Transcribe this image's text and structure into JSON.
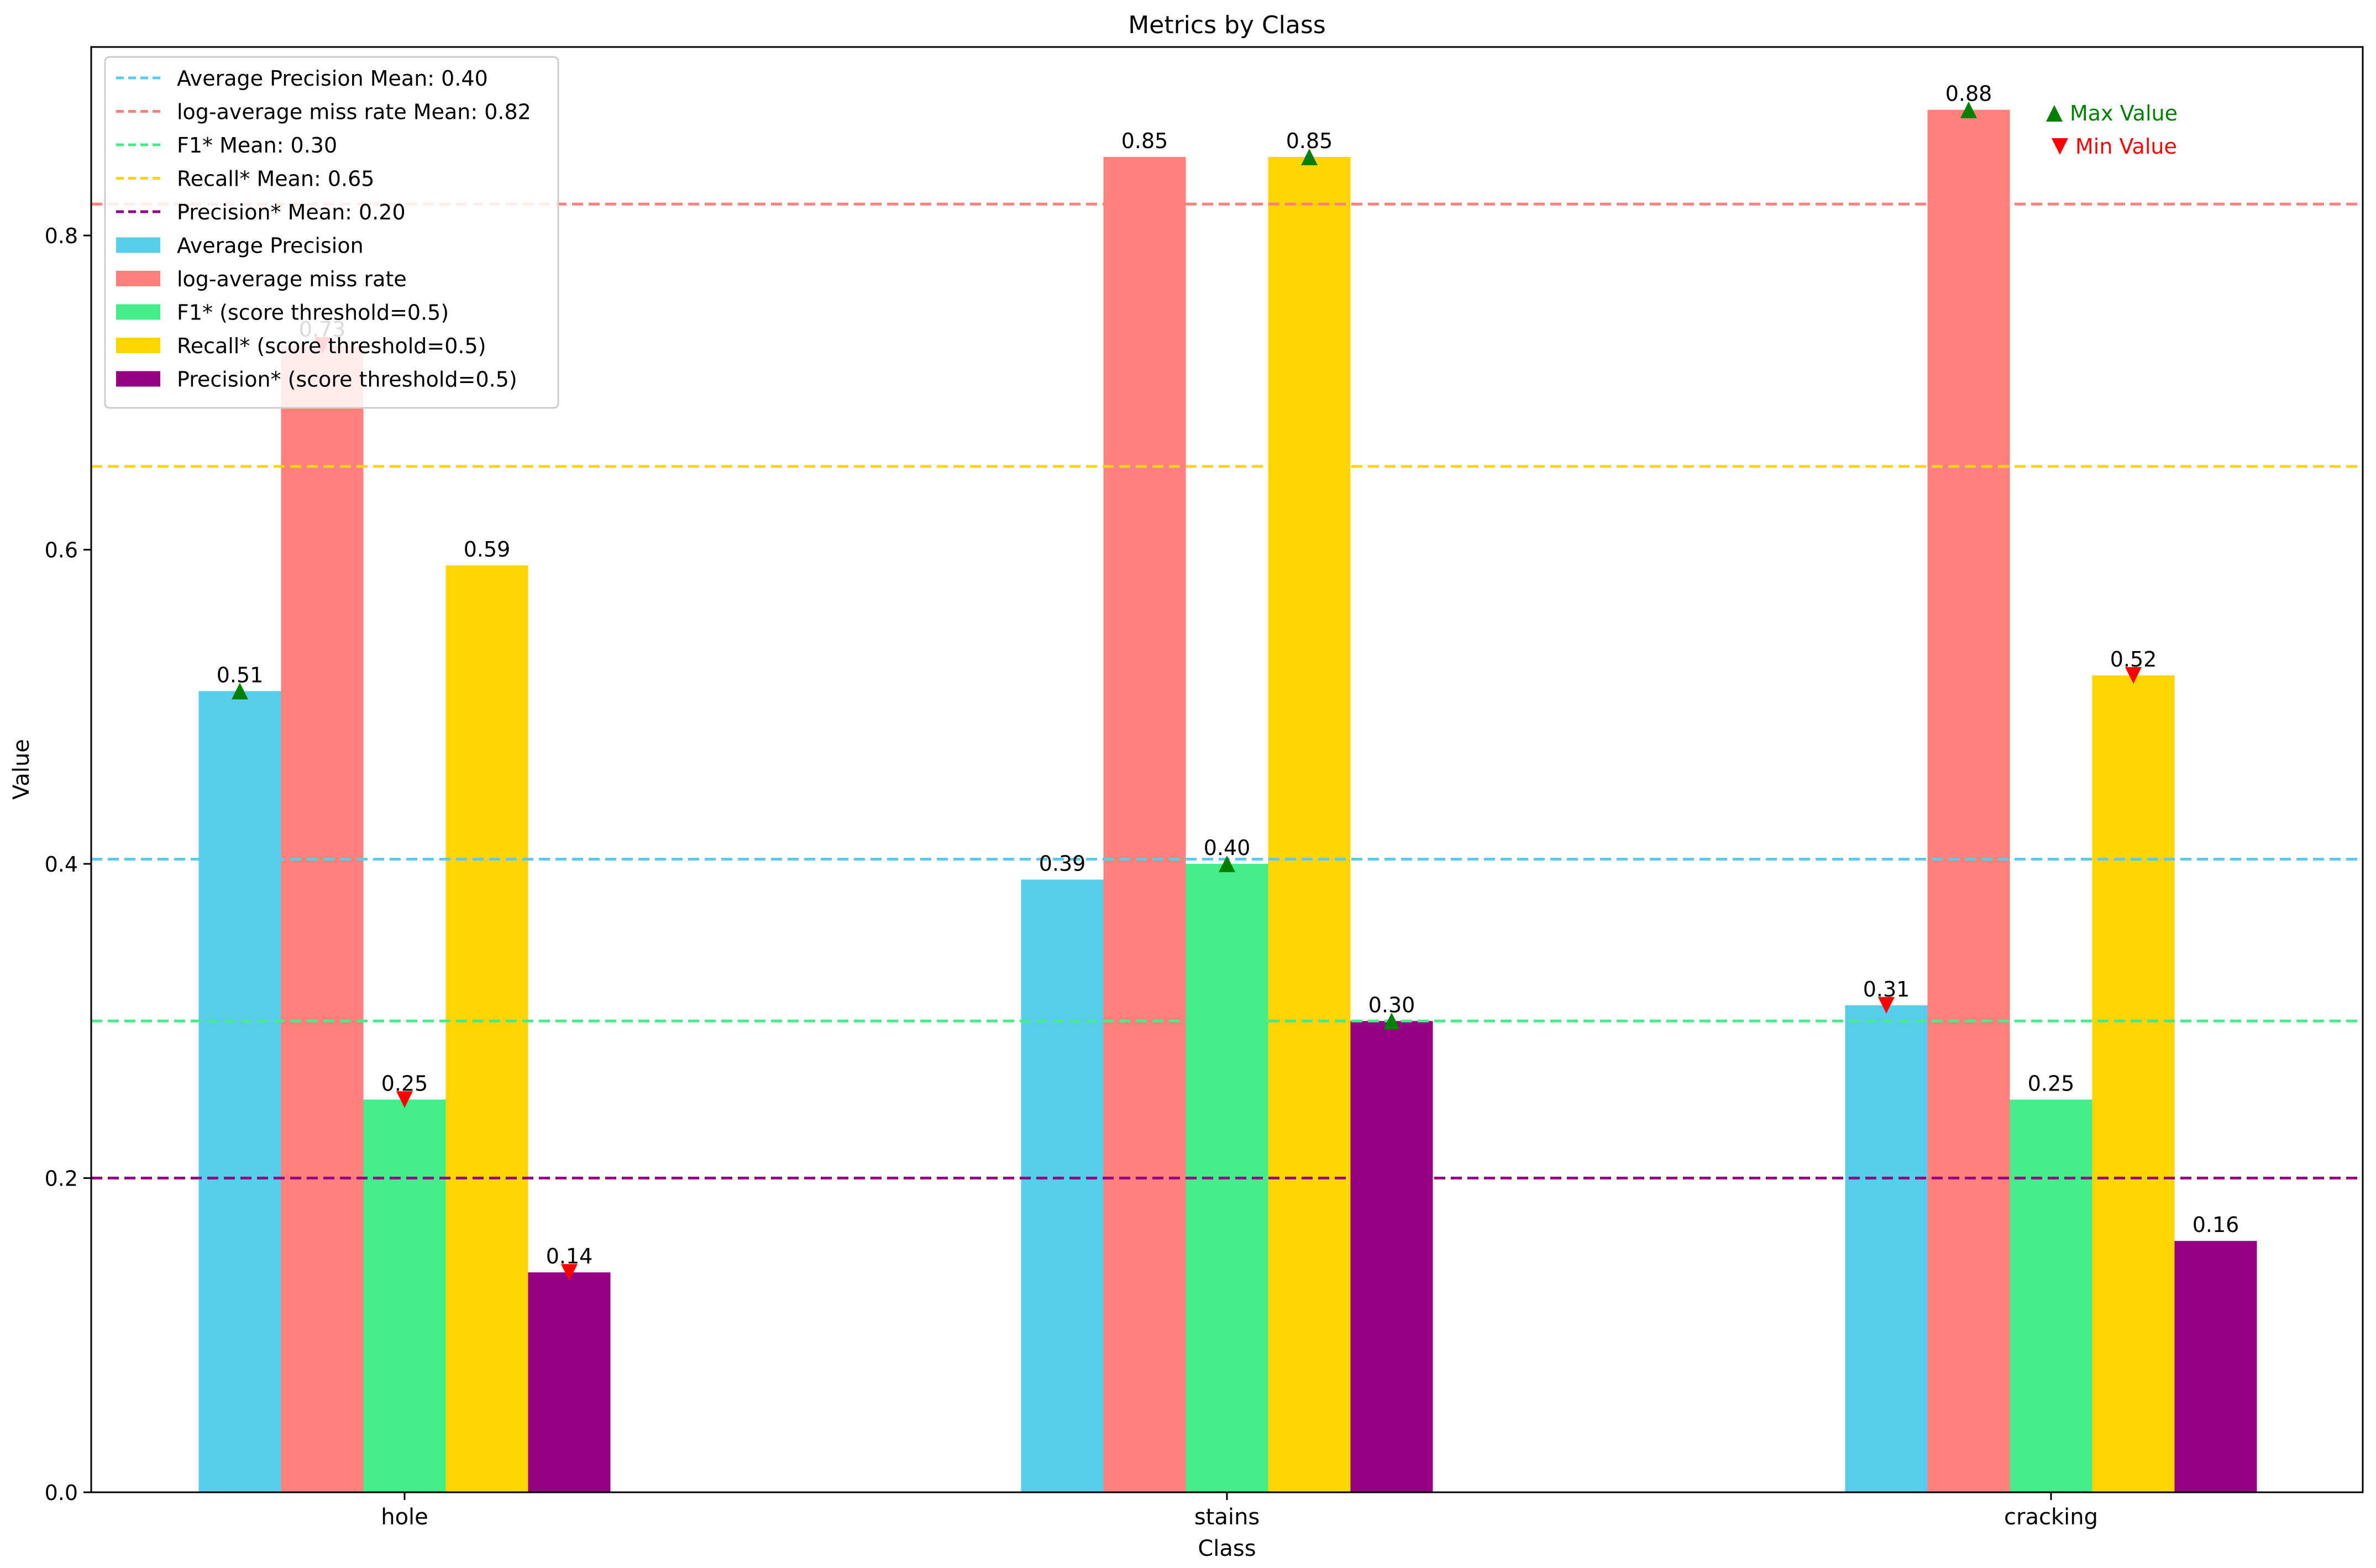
{
  "chart_data": {
    "type": "bar",
    "title": "Metrics by Class",
    "xlabel": "Class",
    "ylabel": "Value",
    "ylim": [
      0,
      0.92
    ],
    "yticks": [
      0.0,
      0.2,
      0.4,
      0.6,
      0.8
    ],
    "ytick_labels": [
      "0.0",
      "0.2",
      "0.4",
      "0.6",
      "0.8"
    ],
    "categories": [
      "hole",
      "stains",
      "cracking"
    ],
    "series": [
      {
        "name": "Average Precision",
        "color": "#57CDEB",
        "values": [
          0.51,
          0.39,
          0.31
        ],
        "labels": [
          "0.51",
          "0.39",
          "0.31"
        ]
      },
      {
        "name": "log-average miss rate",
        "color": "#FF7F7B",
        "values": [
          0.73,
          0.85,
          0.88
        ],
        "labels": [
          "0.73",
          "0.85",
          "0.88"
        ]
      },
      {
        "name": "F1* (score threshold=0.5)",
        "color": "#44EC8A",
        "values": [
          0.25,
          0.4,
          0.25
        ],
        "labels": [
          "0.25",
          "0.40",
          "0.25"
        ]
      },
      {
        "name": "Recall* (score threshold=0.5)",
        "color": "#FFD500",
        "values": [
          0.59,
          0.85,
          0.52
        ],
        "labels": [
          "0.59",
          "0.85",
          "0.52"
        ]
      },
      {
        "name": "Precision* (score threshold=0.5)",
        "color": "#960082",
        "values": [
          0.14,
          0.3,
          0.16
        ],
        "labels": [
          "0.14",
          "0.30",
          "0.16"
        ]
      }
    ],
    "mean_lines": [
      {
        "name": "Average Precision Mean: 0.40",
        "value": 0.403,
        "color": "#57CDEB"
      },
      {
        "name": "log-average miss rate Mean: 0.82",
        "value": 0.82,
        "color": "#FF7F7B"
      },
      {
        "name": "F1* Mean: 0.30",
        "value": 0.3,
        "color": "#44EC8A"
      },
      {
        "name": "Recall* Mean: 0.65",
        "value": 0.653,
        "color": "#FFD500"
      },
      {
        "name": "Precision* Mean: 0.20",
        "value": 0.2,
        "color": "#960082"
      }
    ],
    "max_markers": [
      {
        "series": 0,
        "category": 0
      },
      {
        "series": 1,
        "category": 2
      },
      {
        "series": 2,
        "category": 1
      },
      {
        "series": 3,
        "category": 1
      },
      {
        "series": 4,
        "category": 1
      }
    ],
    "min_markers": [
      {
        "series": 0,
        "category": 2
      },
      {
        "series": 1,
        "category": 0
      },
      {
        "series": 2,
        "category": 0
      },
      {
        "series": 3,
        "category": 2
      },
      {
        "series": 4,
        "category": 0
      }
    ],
    "marker_legend": {
      "max_label": "Max Value",
      "max_color": "#008000",
      "min_label": "Min Value",
      "min_color": "#FF0000"
    },
    "legend_position": "top-left",
    "grid": false
  }
}
